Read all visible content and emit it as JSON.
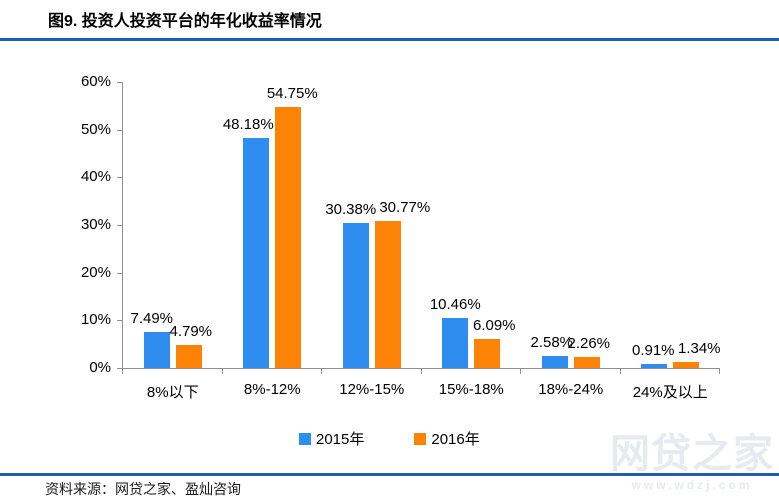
{
  "title": "图9. 投资人投资平台的年化收益率情况",
  "source_note": "资料来源：网贷之家、盈灿咨询",
  "watermark": {
    "name": "网贷之家",
    "url": "www.wdzj.com"
  },
  "colors": {
    "series_2015": "#2E8DEF",
    "series_2016": "#FC8305",
    "divider": "#1F5FAF",
    "axis": "#909090",
    "watermark": "#E7EAF0"
  },
  "legend": {
    "items": [
      {
        "label": "2015年"
      },
      {
        "label": "2016年"
      }
    ]
  },
  "chart_data": {
    "type": "bar",
    "title": "图9. 投资人投资平台的年化收益率情况",
    "categories": [
      "8%以下",
      "8%-12%",
      "12%-15%",
      "15%-18%",
      "18%-24%",
      "24%及以上"
    ],
    "series": [
      {
        "name": "2015年",
        "color": "#2E8DEF",
        "values": [
          7.49,
          48.18,
          30.38,
          10.46,
          2.58,
          0.91
        ]
      },
      {
        "name": "2016年",
        "color": "#FC8305",
        "values": [
          4.79,
          54.75,
          30.77,
          6.09,
          2.26,
          1.34
        ]
      }
    ],
    "value_labels": [
      [
        "7.49%",
        "48.18%",
        "30.38%",
        "10.46%",
        "2.58%",
        "0.91%"
      ],
      [
        "4.79%",
        "54.75%",
        "30.77%",
        "6.09%",
        "2.26%",
        "1.34%"
      ]
    ],
    "xlabel": "",
    "ylabel": "",
    "y_ticks": [
      "60%",
      "50%",
      "40%",
      "30%",
      "20%",
      "10%",
      "0%"
    ],
    "ylim": [
      0,
      60
    ],
    "grid": false,
    "legend_position": "bottom"
  }
}
